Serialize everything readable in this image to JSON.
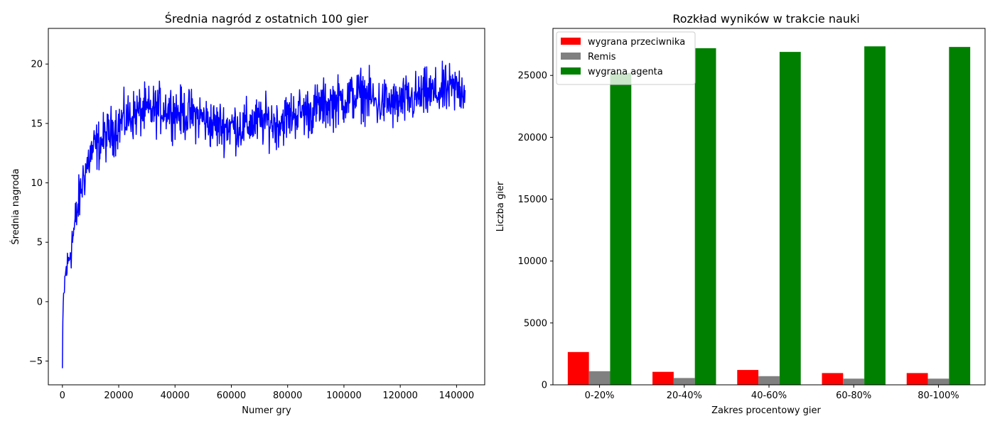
{
  "chart_data": [
    {
      "type": "line",
      "title": "Średnia nagród z ostatnich 100 gier",
      "xlabel": "Numer gry",
      "ylabel": "Średnia nagroda",
      "xlim": [
        -5000,
        150000
      ],
      "ylim": [
        -7,
        23
      ],
      "xticks": [
        0,
        20000,
        40000,
        60000,
        80000,
        100000,
        120000,
        140000
      ],
      "xtick_labels": [
        "0",
        "20000",
        "40000",
        "60000",
        "80000",
        "100000",
        "120000",
        "140000"
      ],
      "yticks": [
        -5,
        0,
        5,
        10,
        15,
        20
      ],
      "ytick_labels": [
        "−5",
        "0",
        "5",
        "10",
        "15",
        "20"
      ],
      "grid": false,
      "color": "#0000ff",
      "series": [
        {
          "x": [
            0,
            300,
            700,
            1200,
            1800,
            2500,
            3300,
            4200,
            5200,
            6300,
            7500,
            8800,
            10200,
            11700,
            13300,
            15000,
            17000,
            19500,
            22000,
            25000,
            28000,
            31000,
            34000,
            37000,
            40000,
            43000,
            46000,
            49000,
            52000,
            55000,
            58000,
            61000,
            64000,
            67000,
            70000,
            73000,
            76000,
            79000,
            82000,
            85000,
            88000,
            91000,
            94000,
            97000,
            100000,
            103000,
            106000,
            109000,
            112000,
            115000,
            118000,
            121000,
            124000,
            127000,
            130000,
            133000,
            136000,
            139000,
            141000,
            143000
          ],
          "y": [
            -5.6,
            -0.5,
            1.2,
            2.5,
            3.0,
            3.8,
            5.0,
            6.0,
            7.5,
            9.0,
            10.5,
            11.5,
            12.5,
            13.0,
            13.3,
            13.8,
            14.2,
            14.8,
            15.3,
            15.7,
            16.0,
            16.0,
            16.2,
            16.3,
            16.0,
            15.8,
            15.7,
            15.6,
            15.0,
            14.8,
            14.8,
            14.8,
            14.7,
            15.0,
            15.1,
            15.2,
            15.0,
            15.4,
            15.8,
            16.0,
            16.0,
            16.4,
            16.6,
            16.8,
            17.0,
            17.2,
            17.5,
            17.2,
            16.6,
            16.8,
            16.5,
            16.8,
            17.0,
            17.3,
            17.5,
            17.5,
            17.7,
            17.8,
            18.0,
            17.8
          ]
        }
      ]
    },
    {
      "type": "bar",
      "title": "Rozkład wyników w trakcie nauki",
      "xlabel": "Zakres procentowy gier",
      "ylabel": "Liczba gier",
      "categories": [
        "0-20%",
        "20-40%",
        "40-60%",
        "60-80%",
        "80-100%"
      ],
      "ylim": [
        0,
        28800
      ],
      "yticks": [
        0,
        5000,
        10000,
        15000,
        20000,
        25000
      ],
      "ytick_labels": [
        "0",
        "5000",
        "10000",
        "15000",
        "20000",
        "25000"
      ],
      "grid": false,
      "legend_position": "top-left",
      "series": [
        {
          "name": "wygrana przeciwnika",
          "color": "#ff0000",
          "values": [
            2650,
            1050,
            1200,
            950,
            950
          ]
        },
        {
          "name": "Remis",
          "color": "#808080",
          "values": [
            1100,
            550,
            700,
            500,
            500
          ]
        },
        {
          "name": "wygrana agenta",
          "color": "#008000",
          "values": [
            25200,
            27200,
            26900,
            27350,
            27300
          ]
        }
      ]
    }
  ]
}
